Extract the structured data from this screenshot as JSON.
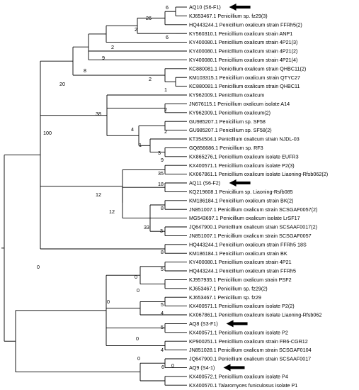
{
  "tree": {
    "leaves": [
      {
        "label": "AQ10 (S6-F1)",
        "arrow": true
      },
      {
        "label": "KJ653467.1 Penicillium sp. fz29(3)"
      },
      {
        "label": "HQ443244.1 Penicillium oxalicum strain FFRh5(2)"
      },
      {
        "label": "KY560310.1 Penicillium oxalicum strain ANP1"
      },
      {
        "label": "KY400080.1 Penicillium oxalicum strain 4P21(3)"
      },
      {
        "label": "KY400080.1 Penicillium oxalicum strain 4P21(2)"
      },
      {
        "label": "KY400080.1 Penicillium oxalicum strain 4P21(4)"
      },
      {
        "label": "KC880081.1 Penicillium oxalicum strain QHBC11(2)"
      },
      {
        "label": "KM103315.1 Penicillium oxalicum strain QTYC27"
      },
      {
        "label": "KC880081.1 Penicillium oxalicum strain QHBC11"
      },
      {
        "label": "KY962009.1 Penicillium oxalicum"
      },
      {
        "label": "JN676115.1 Penicillium oxalicum isolate A14"
      },
      {
        "label": "KY962009.1 Penicillium oxalicum(2)"
      },
      {
        "label": "GU985207.1 Penicillium sp. SF58"
      },
      {
        "label": "GU985207.1 Penicillium sp. SF58(2)"
      },
      {
        "label": "KT354504.1 Penicillium oxalicum strain NJDL-03"
      },
      {
        "label": "GQ856686.1 Penicillium sp. RF3"
      },
      {
        "label": "KX865276.1 Penicillium oxalicum isolate EUFR3"
      },
      {
        "label": "KX400571.1 Penicillium oxalicum isolate P2(3)"
      },
      {
        "label": "KX067861.1 Penicillium oxalicum isolate Liaoning-Rfsb062(2)"
      },
      {
        "label": "AQ11 (S6-F2)",
        "arrow": true
      },
      {
        "label": "KQ219608.1 Penicillium sp. Liaoning-Rsfb085"
      },
      {
        "label": "KM186184.1 Penicillium oxalicum strain BK(2)"
      },
      {
        "label": "JN851007.1 Penicillium oxalicum strain SCSGAF0057(2)"
      },
      {
        "label": "MG543697.1 Penicillium oxalicum isolate LrSF17"
      },
      {
        "label": "JQ647900.1 Penicillium oxalicum strain SCSAAF0017(2)"
      },
      {
        "label": "JN851007.1 Penicillium oxalicum strain SCSGAF0057"
      },
      {
        "label": "HQ443244.1 Penicillium oxalicum strain FFRh5 18S"
      },
      {
        "label": "KM186184.1 Penicillium oxalicum strain BK"
      },
      {
        "label": "KY400080.1 Penicillium oxalicum strain 4P21"
      },
      {
        "label": "HQ443244.1 Penicillium oxalicum strain FFRh5"
      },
      {
        "label": "KJ957935.1 Penicillium oxalicum strain PSF2"
      },
      {
        "label": "KJ653467.1 Penicillium sp. fz29(2)"
      },
      {
        "label": "KJ653467.1 Penicillium sp. fz29"
      },
      {
        "label": "KX400571.1 Penicillium oxalicum isolate P2(2)"
      },
      {
        "label": "KX067861.1 Penicillium oxalicum isolate Liaoning-Rfsb062"
      },
      {
        "label": "AQ8 (S3-F1)",
        "arrow": true
      },
      {
        "label": "KX400571.1 Penicillium oxalicum isolate P2"
      },
      {
        "label": "KP900251.1 Penicillium oxalicum strain FR6-CGR12"
      },
      {
        "label": "JN851028.1 Penicillium oxalicum strain SCSGAF0104"
      },
      {
        "label": "JQ647900.1 Penicillium oxalicum strain SCSAAF0017"
      },
      {
        "label": "AQ9 (S4-1)",
        "arrow": true
      },
      {
        "label": "KX400572.1 Penicillium oxalicum isolate P4"
      },
      {
        "label": "KX400570.1 Talaromyces funiculosus isolate P1"
      }
    ],
    "supports": [
      "6",
      "26",
      "2",
      "6",
      "2",
      "9",
      "8",
      "2",
      "1",
      "20",
      "2",
      "38",
      "4",
      "2",
      "1",
      "3",
      "9",
      "100",
      "35",
      "12",
      "18",
      "8",
      "12",
      "33",
      "3",
      "8",
      "0",
      "5",
      "0",
      "0",
      "5",
      "4",
      "0",
      "5",
      "0",
      "4",
      "0",
      "6",
      "0"
    ]
  }
}
